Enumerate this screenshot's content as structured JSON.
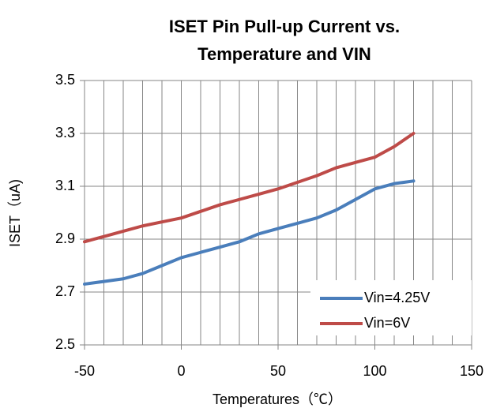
{
  "chart_data": {
    "type": "line",
    "title": [
      "ISET Pin Pull-up Current vs.",
      "Temperature and VIN"
    ],
    "x_label": "Temperatures（℃）",
    "y_label": "ISET（uA)",
    "x": [
      -50,
      -40,
      -30,
      -20,
      -10,
      0,
      10,
      20,
      30,
      40,
      50,
      60,
      70,
      80,
      90,
      100,
      110,
      120
    ],
    "series": [
      {
        "name": "Vin=4.25V",
        "color": "#4a7ebb",
        "values": [
          2.73,
          2.74,
          2.75,
          2.77,
          2.8,
          2.83,
          2.85,
          2.87,
          2.89,
          2.92,
          2.94,
          2.96,
          2.98,
          3.01,
          3.05,
          3.09,
          3.11,
          3.12
        ]
      },
      {
        "name": "Vin=6V",
        "color": "#be4b48",
        "values": [
          2.89,
          2.91,
          2.93,
          2.95,
          2.965,
          2.98,
          3.005,
          3.03,
          3.05,
          3.07,
          3.09,
          3.115,
          3.14,
          3.17,
          3.19,
          3.21,
          3.25,
          3.3
        ]
      }
    ],
    "xlim": [
      -50,
      150
    ],
    "xticks": [
      -50,
      0,
      50,
      100,
      150
    ],
    "xminorticks": [
      -40,
      -30,
      -20,
      -10,
      10,
      20,
      30,
      40,
      60,
      70,
      80,
      90,
      110,
      120,
      130,
      140
    ],
    "ylim": [
      2.5,
      3.5
    ],
    "yticks": [
      2.5,
      2.7,
      2.9,
      3.1,
      3.3,
      3.5
    ],
    "grid": true,
    "legend": "lower right"
  }
}
